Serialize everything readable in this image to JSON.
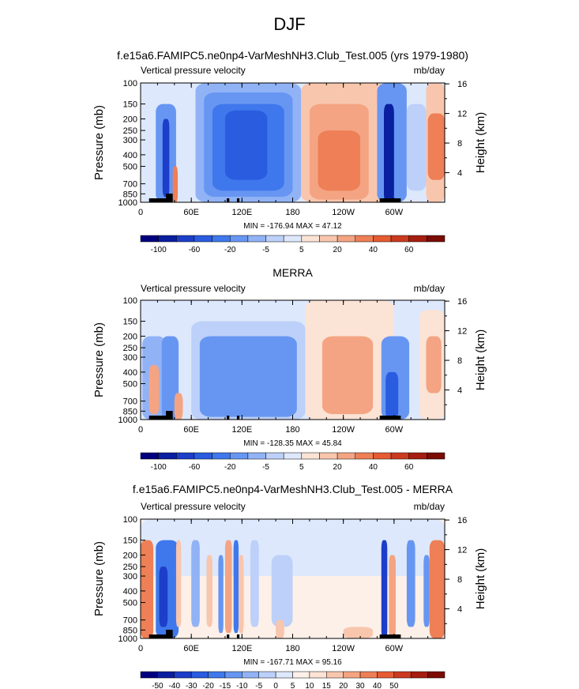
{
  "figure": {
    "title": "DJF"
  },
  "colors": {
    "scale_a": [
      "#00007f",
      "#0a1ea0",
      "#1c3ec8",
      "#2a5ce0",
      "#3f78ec",
      "#6796f2",
      "#91b3f6",
      "#bcd0f9",
      "#dde8fc",
      "#fbe3d5",
      "#f8c6ad",
      "#f4a482",
      "#ee7f56",
      "#e65b32",
      "#cb3a1f",
      "#a51e10",
      "#7a0c05"
    ],
    "scale_b": [
      "#00007f",
      "#0a1ea0",
      "#1c3ec8",
      "#2a5ce0",
      "#3f78ec",
      "#6796f2",
      "#91b3f6",
      "#bcd0f9",
      "#dde8fc",
      "#fdf0e8",
      "#fbe3d5",
      "#f8c6ad",
      "#f4a482",
      "#ee7f56",
      "#e65b32",
      "#cb3a1f",
      "#a51e10",
      "#7a0c05"
    ]
  },
  "chart_data": [
    {
      "type": "heatmap",
      "title": "f.e15a6.FAMIPC5.ne0np4-VarMeshNH3.Club_Test.005 (yrs 1979-1980)",
      "left_label": "Vertical pressure velocity",
      "right_label": "mb/day",
      "ylabel": "Pressure (mb)",
      "y2label": "Height (km)",
      "x_ticks": [
        "0",
        "60E",
        "120E",
        "180",
        "120W",
        "60W"
      ],
      "x_tick_lon": [
        0,
        60,
        120,
        180,
        240,
        300
      ],
      "xlim": [
        0,
        360
      ],
      "y_ticks": [
        "100",
        "150",
        "200",
        "250",
        "300",
        "400",
        "500",
        "700",
        "850",
        "1000"
      ],
      "y_tick_p": [
        100,
        150,
        200,
        250,
        300,
        400,
        500,
        700,
        850,
        1000
      ],
      "y2_ticks": [
        "16",
        "12",
        "8",
        "4"
      ],
      "y2_tick_km": [
        16,
        12,
        8,
        4
      ],
      "stats": "MIN = -176.94  MAX =  47.12",
      "colorbar_labels": [
        "-100",
        "-60",
        "-20",
        "-5",
        "5",
        "20",
        "40",
        "60"
      ],
      "colorbar_label_index": [
        1,
        3,
        5,
        7,
        9,
        11,
        13,
        15
      ],
      "regions": [
        {
          "lon": [
            0,
            55
          ],
          "p": [
            100,
            1000
          ],
          "value": -4
        },
        {
          "lon": [
            18,
            42
          ],
          "p": [
            150,
            1000
          ],
          "value": -35
        },
        {
          "lon": [
            26,
            34
          ],
          "p": [
            200,
            900
          ],
          "value": -90
        },
        {
          "lon": [
            38,
            44
          ],
          "p": [
            500,
            1000
          ],
          "value": 25
        },
        {
          "lon": [
            65,
            190
          ],
          "p": [
            100,
            1000
          ],
          "value": -12
        },
        {
          "lon": [
            75,
            180
          ],
          "p": [
            120,
            900
          ],
          "value": -28
        },
        {
          "lon": [
            85,
            170
          ],
          "p": [
            150,
            800
          ],
          "value": -45
        },
        {
          "lon": [
            100,
            150
          ],
          "p": [
            170,
            650
          ],
          "value": -60
        },
        {
          "lon": [
            190,
            290
          ],
          "p": [
            100,
            1000
          ],
          "value": 6
        },
        {
          "lon": [
            200,
            270
          ],
          "p": [
            150,
            950
          ],
          "value": 15
        },
        {
          "lon": [
            210,
            260
          ],
          "p": [
            250,
            800
          ],
          "value": 22
        },
        {
          "lon": [
            280,
            315
          ],
          "p": [
            100,
            1000
          ],
          "value": -30
        },
        {
          "lon": [
            288,
            300
          ],
          "p": [
            150,
            1000
          ],
          "value": -100
        },
        {
          "lon": [
            315,
            338
          ],
          "p": [
            150,
            800
          ],
          "value": -8
        },
        {
          "lon": [
            338,
            360
          ],
          "p": [
            100,
            1000
          ],
          "value": 10
        },
        {
          "lon": [
            340,
            360
          ],
          "p": [
            180,
            650
          ],
          "value": 28
        }
      ],
      "topography": [
        [
          10,
          30
        ],
        [
          30,
          38
        ],
        [
          102,
          105
        ],
        [
          114,
          117
        ],
        [
          283,
          308
        ]
      ]
    },
    {
      "type": "heatmap",
      "title": "MERRA",
      "left_label": "Vertical pressure velocity",
      "right_label": "mb/day",
      "ylabel": "Pressure (mb)",
      "y2label": "Height (km)",
      "x_ticks": [
        "0",
        "60E",
        "120E",
        "180",
        "120W",
        "60W"
      ],
      "x_tick_lon": [
        0,
        60,
        120,
        180,
        240,
        300
      ],
      "xlim": [
        0,
        360
      ],
      "y_ticks": [
        "100",
        "150",
        "200",
        "250",
        "300",
        "400",
        "500",
        "700",
        "850",
        "1000"
      ],
      "y_tick_p": [
        100,
        150,
        200,
        250,
        300,
        400,
        500,
        700,
        850,
        1000
      ],
      "y2_ticks": [
        "16",
        "12",
        "8",
        "4"
      ],
      "y2_tick_km": [
        16,
        12,
        8,
        4
      ],
      "stats": "MIN = -128.35  MAX =  45.84",
      "colorbar_labels": [
        "-100",
        "-60",
        "-20",
        "-5",
        "5",
        "20",
        "40",
        "60"
      ],
      "colorbar_label_index": [
        1,
        3,
        5,
        7,
        9,
        11,
        13,
        15
      ],
      "regions": [
        {
          "lon": [
            0,
            55
          ],
          "p": [
            100,
            1000
          ],
          "value": -3
        },
        {
          "lon": [
            2,
            30
          ],
          "p": [
            200,
            1000
          ],
          "value": -12
        },
        {
          "lon": [
            10,
            22
          ],
          "p": [
            350,
            900
          ],
          "value": 15
        },
        {
          "lon": [
            25,
            45
          ],
          "p": [
            200,
            1000
          ],
          "value": -20
        },
        {
          "lon": [
            40,
            50
          ],
          "p": [
            600,
            1000
          ],
          "value": 15
        },
        {
          "lon": [
            60,
            195
          ],
          "p": [
            150,
            1000
          ],
          "value": -8
        },
        {
          "lon": [
            70,
            185
          ],
          "p": [
            200,
            950
          ],
          "value": -20
        },
        {
          "lon": [
            95,
            155
          ],
          "p": [
            250,
            800
          ],
          "value": -35
        },
        {
          "lon": [
            195,
            300
          ],
          "p": [
            100,
            1000
          ],
          "value": 4
        },
        {
          "lon": [
            215,
            275
          ],
          "p": [
            200,
            900
          ],
          "value": 12
        },
        {
          "lon": [
            235,
            260
          ],
          "p": [
            300,
            600
          ],
          "value": 20
        },
        {
          "lon": [
            285,
            318
          ],
          "p": [
            200,
            1000
          ],
          "value": -20
        },
        {
          "lon": [
            290,
            305
          ],
          "p": [
            400,
            1000
          ],
          "value": -60
        },
        {
          "lon": [
            330,
            360
          ],
          "p": [
            120,
            1000
          ],
          "value": 4
        },
        {
          "lon": [
            338,
            356
          ],
          "p": [
            200,
            600
          ],
          "value": 12
        }
      ],
      "topography": [
        [
          10,
          30
        ],
        [
          30,
          38
        ],
        [
          102,
          105
        ],
        [
          114,
          117
        ],
        [
          283,
          308
        ]
      ]
    },
    {
      "type": "heatmap",
      "title": "f.e15a6.FAMIPC5.ne0np4-VarMeshNH3.Club_Test.005 - MERRA",
      "left_label": "Vertical pressure velocity",
      "right_label": "mb/day",
      "ylabel": "Pressure (mb)",
      "y2label": "Height (km)",
      "x_ticks": [
        "0",
        "60E",
        "120E",
        "180",
        "120W",
        "60W"
      ],
      "x_tick_lon": [
        0,
        60,
        120,
        180,
        240,
        300
      ],
      "xlim": [
        0,
        360
      ],
      "y_ticks": [
        "100",
        "150",
        "200",
        "250",
        "300",
        "400",
        "500",
        "700",
        "850",
        "1000"
      ],
      "y_tick_p": [
        100,
        150,
        200,
        250,
        300,
        400,
        500,
        700,
        850,
        1000
      ],
      "y2_ticks": [
        "16",
        "12",
        "8",
        "4"
      ],
      "y2_tick_km": [
        16,
        12,
        8,
        4
      ],
      "stats": "MIN = -167.71  MAX =  95.16",
      "colorbar_labels": [
        "-50",
        "-40",
        "-30",
        "-20",
        "-15",
        "-10",
        "-5",
        "0",
        "5",
        "10",
        "15",
        "20",
        "30",
        "40",
        "50"
      ],
      "colorbar_label_index": [
        1,
        2,
        3,
        4,
        5,
        6,
        7,
        8,
        9,
        10,
        11,
        12,
        13,
        14,
        15
      ],
      "regions": [
        {
          "lon": [
            0,
            360
          ],
          "p": [
            100,
            300
          ],
          "value": -2
        },
        {
          "lon": [
            0,
            15
          ],
          "p": [
            150,
            1000
          ],
          "value": 25
        },
        {
          "lon": [
            18,
            45
          ],
          "p": [
            150,
            1000
          ],
          "value": -20
        },
        {
          "lon": [
            22,
            32
          ],
          "p": [
            250,
            800
          ],
          "value": -45
        },
        {
          "lon": [
            42,
            48
          ],
          "p": [
            150,
            800
          ],
          "value": 12
        },
        {
          "lon": [
            60,
            70
          ],
          "p": [
            150,
            800
          ],
          "value": -10
        },
        {
          "lon": [
            78,
            85
          ],
          "p": [
            200,
            800
          ],
          "value": 12
        },
        {
          "lon": [
            92,
            98
          ],
          "p": [
            200,
            900
          ],
          "value": -15
        },
        {
          "lon": [
            100,
            108
          ],
          "p": [
            150,
            900
          ],
          "value": 18
        },
        {
          "lon": [
            110,
            116
          ],
          "p": [
            150,
            900
          ],
          "value": -22
        },
        {
          "lon": [
            116,
            122
          ],
          "p": [
            200,
            900
          ],
          "value": 14
        },
        {
          "lon": [
            130,
            140
          ],
          "p": [
            150,
            800
          ],
          "value": -8
        },
        {
          "lon": [
            155,
            180
          ],
          "p": [
            200,
            800
          ],
          "value": -6
        },
        {
          "lon": [
            160,
            170
          ],
          "p": [
            700,
            1000
          ],
          "value": 12
        },
        {
          "lon": [
            195,
            270
          ],
          "p": [
            300,
            1000
          ],
          "value": 3
        },
        {
          "lon": [
            240,
            275
          ],
          "p": [
            800,
            1000
          ],
          "value": 14
        },
        {
          "lon": [
            285,
            292
          ],
          "p": [
            150,
            1000
          ],
          "value": -45
        },
        {
          "lon": [
            294,
            302
          ],
          "p": [
            200,
            1000
          ],
          "value": 18
        },
        {
          "lon": [
            315,
            325
          ],
          "p": [
            150,
            800
          ],
          "value": -15
        },
        {
          "lon": [
            335,
            342
          ],
          "p": [
            200,
            800
          ],
          "value": -18
        },
        {
          "lon": [
            342,
            360
          ],
          "p": [
            150,
            1000
          ],
          "value": 25
        }
      ],
      "topography": [
        [
          10,
          30
        ],
        [
          30,
          38
        ],
        [
          102,
          105
        ],
        [
          114,
          117
        ],
        [
          283,
          308
        ]
      ]
    }
  ]
}
